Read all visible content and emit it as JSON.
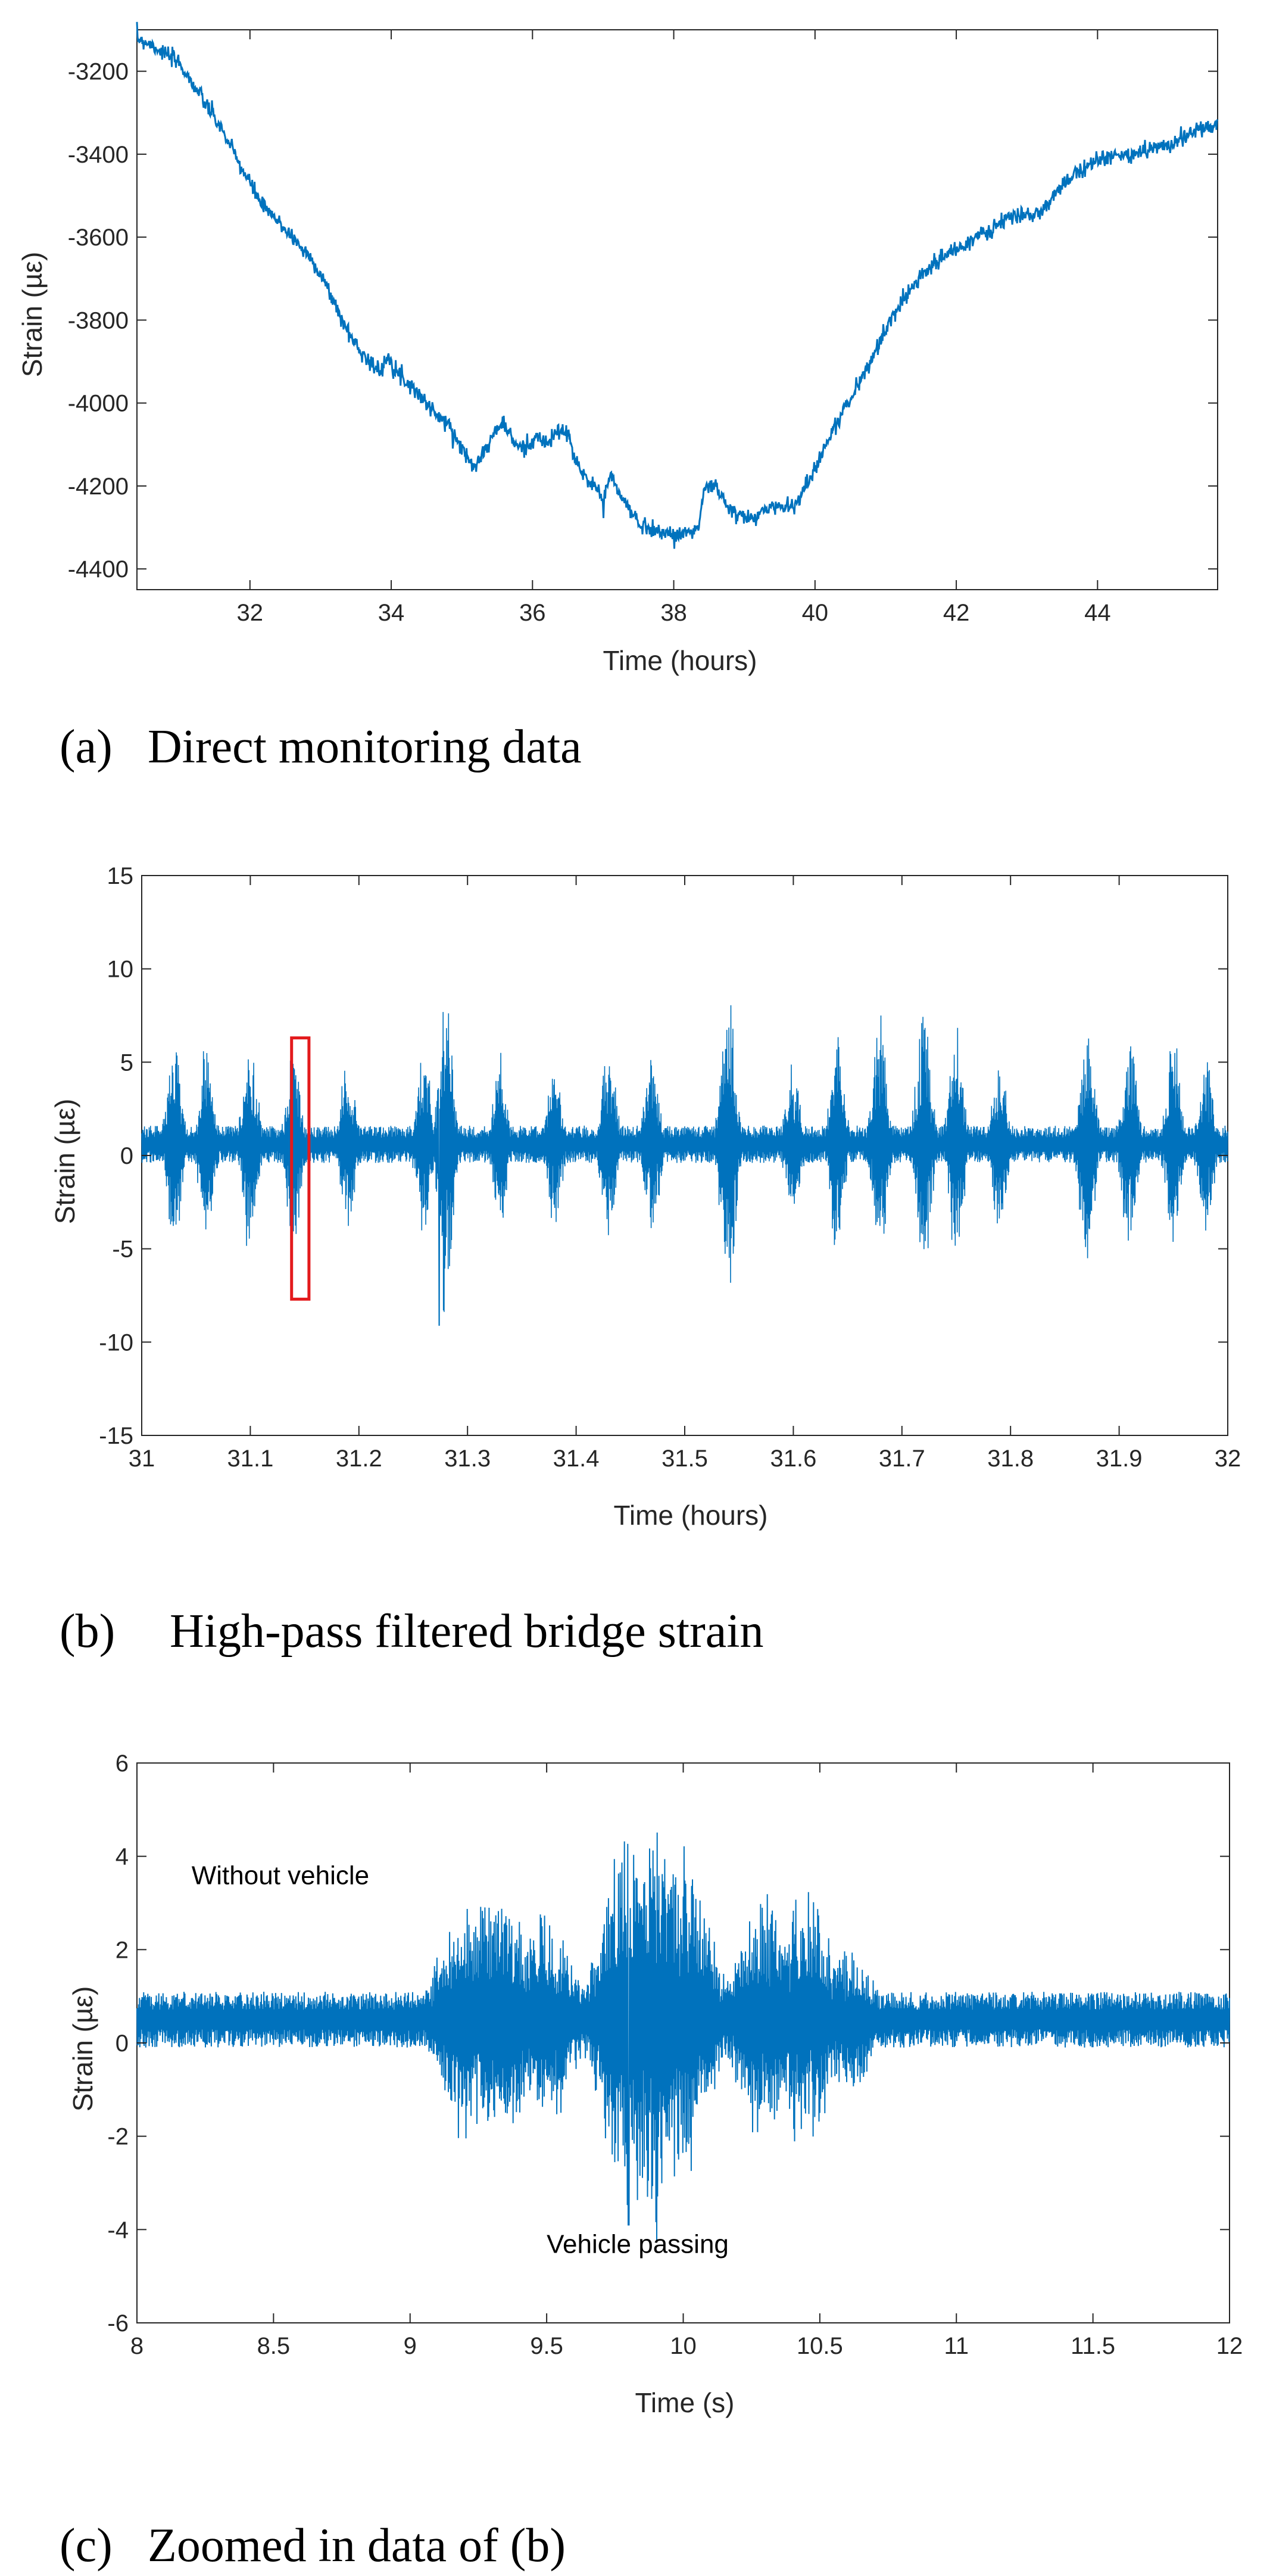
{
  "line_color": "#0072bd",
  "highlight_color": "#e31a1c",
  "chart_data": [
    {
      "id": "a",
      "type": "line",
      "caption_label": "(a)",
      "caption_text": "Direct monitoring data",
      "xlabel": "Time (hours)",
      "ylabel": "Strain (µε)",
      "xlim": [
        30.4,
        45.7
      ],
      "ylim": [
        -4450,
        -3100
      ],
      "xticks": [
        32,
        34,
        36,
        38,
        40,
        42,
        44
      ],
      "xtick_labels": [
        "32",
        "34",
        "36",
        "38",
        "40",
        "42",
        "44"
      ],
      "yticks": [
        -4400,
        -4200,
        -4000,
        -3800,
        -3600,
        -3400,
        -3200
      ],
      "ytick_labels": [
        "-4400",
        "-4200",
        "-4000",
        "-3800",
        "-3600",
        "-3400",
        "-3200"
      ],
      "series": [
        {
          "name": "strain",
          "noise": 10,
          "x": [
            30.4,
            30.6,
            30.9,
            31.0,
            31.3,
            31.6,
            31.9,
            32.2,
            32.5,
            32.8,
            32.9,
            33.0,
            33.2,
            33.3,
            33.5,
            33.7,
            33.85,
            33.95,
            34.1,
            34.3,
            34.45,
            34.65,
            34.85,
            35.0,
            35.15,
            35.35,
            35.5,
            35.6,
            35.75,
            35.9,
            36.05,
            36.2,
            36.35,
            36.5,
            36.6,
            36.75,
            36.9,
            37.0,
            37.1,
            37.2,
            37.35,
            37.5,
            37.8,
            38.0,
            38.2,
            38.35,
            38.45,
            38.6,
            38.75,
            38.9,
            39.05,
            39.2,
            39.35,
            39.55,
            39.75,
            39.9,
            40.1,
            40.3,
            40.6,
            40.9,
            41.2,
            41.5,
            41.8,
            42.1,
            42.4,
            42.7,
            42.9,
            43.1,
            43.3,
            43.5,
            43.7,
            43.9,
            44.1,
            44.3,
            44.5,
            44.7,
            44.9,
            45.1,
            45.3,
            45.5,
            45.7
          ],
          "y": [
            -3120,
            -3135,
            -3170,
            -3180,
            -3260,
            -3340,
            -3440,
            -3530,
            -3580,
            -3640,
            -3660,
            -3690,
            -3760,
            -3800,
            -3860,
            -3900,
            -3930,
            -3880,
            -3930,
            -3960,
            -3990,
            -4030,
            -4060,
            -4110,
            -4150,
            -4110,
            -4060,
            -4050,
            -4100,
            -4110,
            -4080,
            -4100,
            -4070,
            -4070,
            -4140,
            -4180,
            -4200,
            -4240,
            -4170,
            -4210,
            -4250,
            -4290,
            -4310,
            -4320,
            -4310,
            -4300,
            -4200,
            -4200,
            -4250,
            -4270,
            -4280,
            -4270,
            -4250,
            -4250,
            -4240,
            -4190,
            -4120,
            -4050,
            -3960,
            -3860,
            -3760,
            -3690,
            -3650,
            -3620,
            -3590,
            -3560,
            -3545,
            -3550,
            -3520,
            -3480,
            -3440,
            -3420,
            -3410,
            -3405,
            -3400,
            -3390,
            -3380,
            -3370,
            -3350,
            -3340,
            -3330
          ]
        }
      ]
    },
    {
      "id": "b",
      "type": "line",
      "caption_label": "(b)",
      "caption_text": "High-pass filtered bridge strain",
      "xlabel": "Time (hours)",
      "ylabel": "Strain (µε)",
      "xlim": [
        31,
        32
      ],
      "ylim": [
        -15,
        15
      ],
      "xticks": [
        31,
        31.1,
        31.2,
        31.3,
        31.4,
        31.5,
        31.6,
        31.7,
        31.8,
        31.9,
        32
      ],
      "xtick_labels": [
        "31",
        "31.1",
        "31.2",
        "31.3",
        "31.4",
        "31.5",
        "31.6",
        "31.7",
        "31.8",
        "31.9",
        "32"
      ],
      "yticks": [
        -15,
        -10,
        -5,
        0,
        5,
        10,
        15
      ],
      "ytick_labels": [
        "-15",
        "-10",
        "-5",
        "0",
        "5",
        "10",
        "15"
      ],
      "highlight_box": {
        "x0": 31.138,
        "x1": 31.154,
        "y0": -7.7,
        "y1": 6.3
      },
      "series": [
        {
          "name": "filtered strain",
          "baseline": 0.6,
          "band": 1.0,
          "bursts_x": [
            31.03,
            31.06,
            31.1,
            31.14,
            31.19,
            31.26,
            31.28,
            31.33,
            31.38,
            31.43,
            31.47,
            31.54,
            31.6,
            31.64,
            31.68,
            31.72,
            31.75,
            31.79,
            31.87,
            31.91,
            31.95,
            31.98
          ],
          "bursts_amp": [
            6.5,
            6.0,
            6.5,
            6.0,
            5.5,
            6.0,
            10.3,
            5.0,
            5.0,
            6.5,
            5.5,
            9.6,
            5.0,
            6.5,
            7.5,
            8.0,
            7.0,
            5.5,
            8.0,
            6.8,
            6.5,
            5.5
          ],
          "min_value": -9.1,
          "min_x": 31.274
        }
      ]
    },
    {
      "id": "c",
      "type": "line",
      "caption_label": "(c)",
      "caption_text": "Zoomed in data of (b)",
      "xlabel": "Time (s)",
      "ylabel": "Strain (µε)",
      "xlim": [
        8,
        12
      ],
      "ylim": [
        -6,
        6
      ],
      "xticks": [
        8,
        8.5,
        9,
        9.5,
        10,
        10.5,
        11,
        11.5,
        12
      ],
      "xtick_labels": [
        "8",
        "8.5",
        "9",
        "9.5",
        "10",
        "10.5",
        "11",
        "11.5",
        "12"
      ],
      "yticks": [
        -6,
        -4,
        -2,
        0,
        2,
        4,
        6
      ],
      "ytick_labels": [
        "-6",
        "-4",
        "-2",
        "0",
        "2",
        "4",
        "6"
      ],
      "annotations": [
        {
          "text": "Without vehicle",
          "x": 8.2,
          "y": 3.4
        },
        {
          "text": "Vehicle passing",
          "x": 9.5,
          "y": -4.5
        }
      ],
      "series": [
        {
          "name": "zoomed strain",
          "baseline": 0.5,
          "band": 0.6,
          "bursts_x": [
            9.2,
            9.33,
            9.5,
            9.8,
            9.9,
            10.0,
            10.3,
            10.45,
            10.6
          ],
          "bursts_amp": [
            2.8,
            3.5,
            2.5,
            4.4,
            5.0,
            4.0,
            3.1,
            3.0,
            1.8
          ],
          "min_value": -3.9,
          "min_x": 9.8
        }
      ]
    }
  ]
}
